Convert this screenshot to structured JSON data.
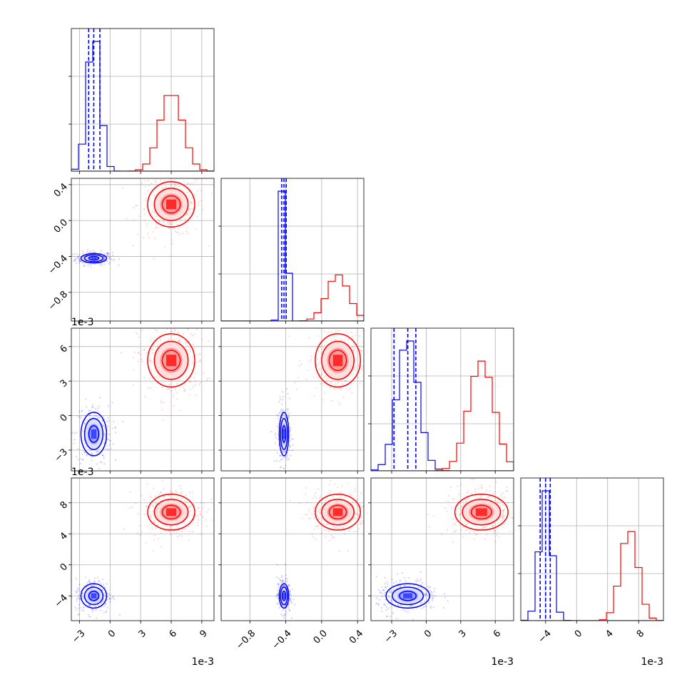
{
  "chart_data": {
    "type": "corner",
    "series": [
      {
        "name": "",
        "color": "#0000ff",
        "means": [
          -1.6,
          -0.42,
          -1.6,
          -4.0
        ],
        "sds": [
          0.6,
          0.025,
          0.9,
          0.75
        ],
        "quantiles": [
          [
            -2.1,
            -1.6,
            -1.0
          ],
          [
            -0.445,
            -0.42,
            -0.395
          ],
          [
            -2.8,
            -1.6,
            -0.9
          ],
          [
            -4.7,
            -4.0,
            -3.4
          ]
        ]
      },
      {
        "name": "",
        "color": "#ff0000",
        "means": [
          6.0,
          0.18,
          4.8,
          6.8
        ],
        "sds": [
          1.1,
          0.12,
          1.1,
          1.1
        ]
      }
    ],
    "variables": [
      {
        "ticks": [
          -3,
          0,
          3,
          6,
          9
        ],
        "range": [
          -3.8,
          10.2
        ],
        "offset_text": "1e-3"
      },
      {
        "ticks": [
          -0.8,
          -0.4,
          0.0,
          0.4
        ],
        "range": [
          -1.12,
          0.47
        ],
        "offset_text": ""
      },
      {
        "ticks": [
          -3,
          0,
          3,
          6
        ],
        "range": [
          -4.8,
          7.6
        ],
        "offset_text": "1e-3"
      },
      {
        "ticks": [
          -4,
          0,
          4,
          8
        ],
        "range": [
          -7.2,
          11.2
        ],
        "offset_text": "1e-3"
      }
    ],
    "tick_labels": {
      "v0": [
        "−3",
        "0",
        "3",
        "6",
        "9"
      ],
      "v1": [
        "−0.8",
        "−0.4",
        "0.0",
        "0.4"
      ],
      "v2": [
        "−3",
        "0",
        "3",
        "6"
      ],
      "v3": [
        "−4",
        "0",
        "4",
        "8"
      ]
    },
    "offset_labels": {
      "row2": "1e-3",
      "row3": "1e-3",
      "col0": "1e-3",
      "col2": "1e-3",
      "col3": "1e-3"
    },
    "grid": true
  }
}
